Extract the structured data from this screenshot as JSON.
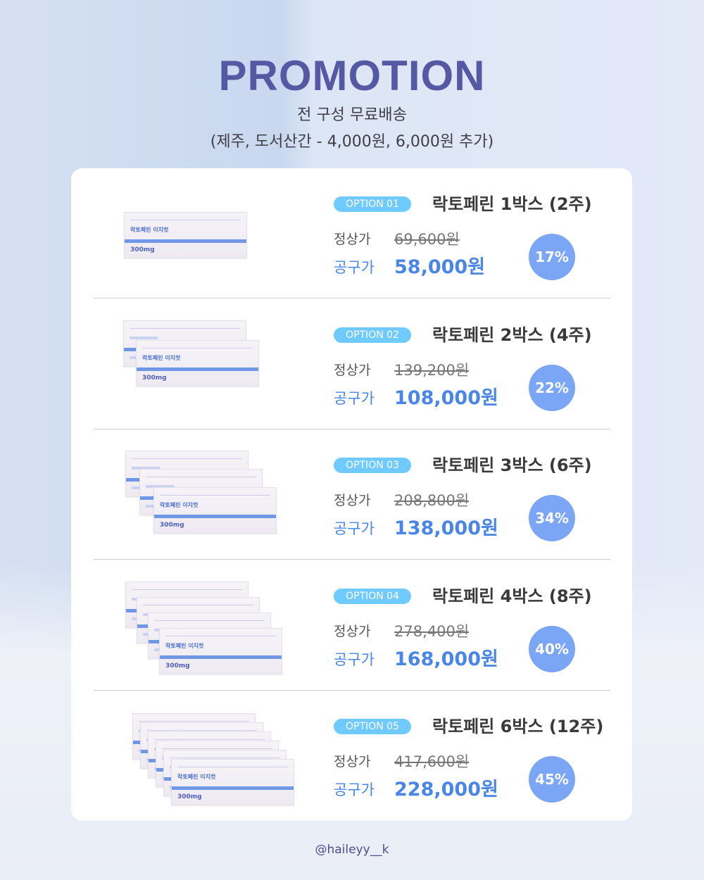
{
  "header": {
    "title": "PROMOTION",
    "subtitle": "전 구성 무료배송",
    "note": "(제주, 도서산간 - 4,000원, 6,000원 추가)"
  },
  "labels": {
    "regular": "정상가",
    "group": "공구가"
  },
  "product_box": {
    "name": "락토페린 이지컷",
    "dose": "300mg"
  },
  "colors": {
    "title": "#5558a3",
    "badge": "#6fcbff",
    "price": "#4a86e8",
    "discount": "#7aa6f5"
  },
  "options": [
    {
      "badge": "OPTION 01",
      "name": "락토페린 1박스 (2주)",
      "boxes": 1,
      "regular": "69,600원",
      "price": "58,000원",
      "discount": "17%"
    },
    {
      "badge": "OPTION 02",
      "name": "락토페린 2박스 (4주)",
      "boxes": 2,
      "regular": "139,200원",
      "price": "108,000원",
      "discount": "22%"
    },
    {
      "badge": "OPTION 03",
      "name": "락토페린 3박스 (6주)",
      "boxes": 3,
      "regular": "208,800원",
      "price": "138,000원",
      "discount": "34%"
    },
    {
      "badge": "OPTION 04",
      "name": "락토페린 4박스 (8주)",
      "boxes": 4,
      "regular": "278,400원",
      "price": "168,000원",
      "discount": "40%"
    },
    {
      "badge": "OPTION 05",
      "name": "락토페린 6박스 (12주)",
      "boxes": 6,
      "regular": "417,600원",
      "price": "228,000원",
      "discount": "45%"
    }
  ],
  "footer": {
    "handle": "@haileyy__k"
  }
}
